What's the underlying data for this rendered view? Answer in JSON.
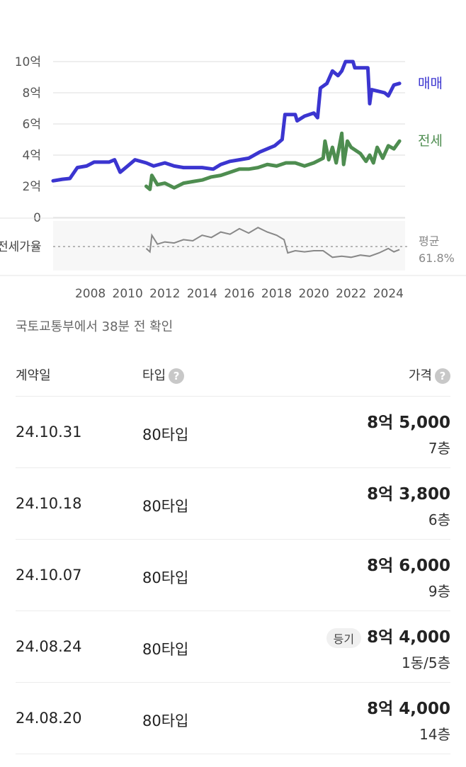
{
  "chart_data": [
    {
      "type": "line",
      "ylim": [
        0,
        10
      ],
      "xlim": [
        2006.0,
        2024.9
      ],
      "y_ticks": [
        "0",
        "2억",
        "4억",
        "6억",
        "8억",
        "10억"
      ],
      "x_ticks": [
        "2008",
        "2010",
        "2012",
        "2014",
        "2016",
        "2018",
        "2020",
        "2022",
        "2024"
      ],
      "grid": true,
      "series": [
        {
          "name": "매매",
          "color": "#3b35d0",
          "x": [
            2006.0,
            2006.5,
            2006.9,
            2007.3,
            2007.8,
            2008.2,
            2009.0,
            2009.3,
            2009.6,
            2010.0,
            2010.4,
            2011.0,
            2011.4,
            2012.0,
            2012.5,
            2013.0,
            2014.0,
            2014.6,
            2015.0,
            2015.5,
            2016.0,
            2016.5,
            2017.1,
            2017.5,
            2017.9,
            2018.3,
            2018.45,
            2019.0,
            2019.1,
            2019.5,
            2020.0,
            2020.2,
            2020.35,
            2020.7,
            2021.0,
            2021.3,
            2021.5,
            2021.7,
            2022.1,
            2022.2,
            2022.9,
            2023.0,
            2023.1,
            2023.8,
            2024.0,
            2024.3,
            2024.6
          ],
          "y": [
            2.35,
            2.45,
            2.5,
            3.2,
            3.3,
            3.55,
            3.55,
            3.7,
            2.9,
            3.3,
            3.7,
            3.5,
            3.3,
            3.5,
            3.3,
            3.2,
            3.2,
            3.1,
            3.4,
            3.6,
            3.7,
            3.8,
            4.2,
            4.4,
            4.6,
            5.0,
            6.6,
            6.6,
            6.2,
            6.5,
            6.7,
            6.4,
            8.3,
            8.6,
            9.4,
            9.1,
            9.4,
            10.0,
            10.0,
            9.6,
            9.6,
            7.3,
            8.2,
            8.0,
            7.8,
            8.5,
            8.6
          ]
        },
        {
          "name": "전세",
          "color": "#4e8d50",
          "x": [
            2011.0,
            2011.2,
            2011.3,
            2011.6,
            2012.0,
            2012.5,
            2013.0,
            2013.5,
            2014.0,
            2014.5,
            2015.0,
            2015.5,
            2016.0,
            2016.5,
            2017.0,
            2017.5,
            2018.0,
            2018.5,
            2019.0,
            2019.5,
            2020.0,
            2020.5,
            2020.6,
            2020.8,
            2021.0,
            2021.2,
            2021.5,
            2021.6,
            2021.8,
            2022.0,
            2022.5,
            2022.8,
            2023.0,
            2023.2,
            2023.4,
            2023.7,
            2024.0,
            2024.3,
            2024.6
          ],
          "y": [
            2.0,
            1.8,
            2.7,
            2.1,
            2.2,
            1.9,
            2.2,
            2.3,
            2.4,
            2.6,
            2.7,
            2.9,
            3.1,
            3.1,
            3.2,
            3.4,
            3.3,
            3.5,
            3.5,
            3.3,
            3.5,
            3.8,
            4.9,
            3.7,
            4.5,
            3.5,
            5.4,
            3.4,
            4.9,
            4.5,
            4.1,
            3.6,
            4.0,
            3.5,
            4.5,
            3.8,
            4.6,
            4.4,
            4.9
          ]
        }
      ]
    },
    {
      "type": "line",
      "label": "전세가율",
      "average_label": "평균",
      "average_value": "61.8%",
      "average": 61.8,
      "ylim": [
        40,
        85
      ],
      "series": [
        {
          "color": "#888888",
          "x": [
            2011.0,
            2011.2,
            2011.3,
            2011.6,
            2012.0,
            2012.5,
            2013.0,
            2013.5,
            2014.0,
            2014.5,
            2015.0,
            2015.5,
            2016.0,
            2016.5,
            2017.0,
            2017.5,
            2018.0,
            2018.4,
            2018.6,
            2019.0,
            2019.5,
            2020.0,
            2020.5,
            2021.0,
            2021.5,
            2022.0,
            2022.5,
            2023.0,
            2023.5,
            2024.0,
            2024.3,
            2024.6
          ],
          "y": [
            60,
            57,
            72,
            64,
            66,
            65,
            68,
            67,
            72,
            70,
            75,
            73,
            78,
            74,
            79,
            75,
            72,
            68,
            56,
            58,
            57,
            58,
            58,
            52,
            53,
            52,
            54,
            53,
            56,
            60,
            57,
            59
          ]
        }
      ]
    }
  ],
  "source_text": "국토교통부에서 38분 전 확인",
  "table": {
    "headers": {
      "date": "계약일",
      "type": "타입",
      "price": "가격",
      "help": "?"
    },
    "rows": [
      {
        "date": "24.10.31",
        "type": "80타입",
        "price": "8억 5,000",
        "floor": "7층",
        "badge": ""
      },
      {
        "date": "24.10.18",
        "type": "80타입",
        "price": "8억 3,800",
        "floor": "6층",
        "badge": ""
      },
      {
        "date": "24.10.07",
        "type": "80타입",
        "price": "8억 6,000",
        "floor": "9층",
        "badge": ""
      },
      {
        "date": "24.08.24",
        "type": "80타입",
        "price": "8억 4,000",
        "floor": "1동/5층",
        "badge": "등기"
      },
      {
        "date": "24.08.20",
        "type": "80타입",
        "price": "8억 4,000",
        "floor": "14층",
        "badge": ""
      }
    ]
  }
}
